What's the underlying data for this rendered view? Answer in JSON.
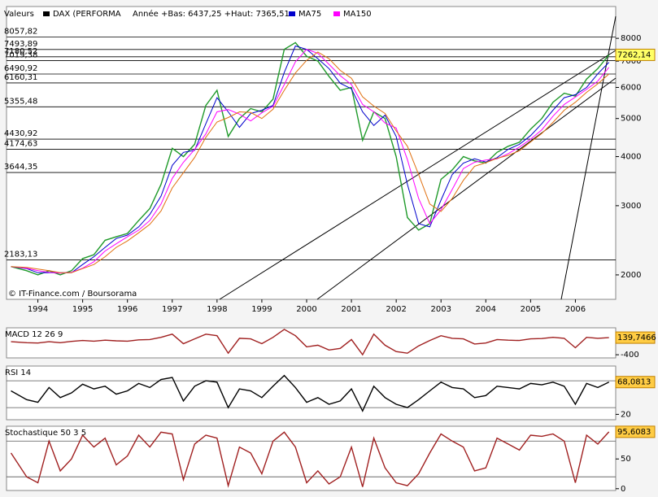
{
  "chart_data": [
    {
      "type": "line",
      "log_scale": true,
      "legend_title": "Valeurs",
      "subtitle": "Année +Bas: 6437,25 +Haut: 7365,51",
      "credit": "© IT-Finance.com / Boursorama",
      "x": [
        1993.9,
        1994.25,
        1994.5,
        1994.75,
        1995,
        1995.25,
        1995.5,
        1995.75,
        1996,
        1996.25,
        1996.5,
        1996.75,
        1997,
        1997.25,
        1997.5,
        1997.75,
        1998,
        1998.25,
        1998.5,
        1998.75,
        1999,
        1999.25,
        1999.5,
        1999.75,
        2000,
        2000.25,
        2000.5,
        2000.75,
        2001,
        2001.25,
        2001.5,
        2001.75,
        2002,
        2002.25,
        2002.5,
        2002.75,
        2003,
        2003.25,
        2003.5,
        2003.75,
        2004,
        2004.25,
        2004.5,
        2004.75,
        2005,
        2005.25,
        2005.5,
        2005.75,
        2006,
        2006.25,
        2006.5,
        2006.75,
        2007,
        2007.25
      ],
      "series": [
        {
          "name": "DAX (PERFORMA",
          "color": "#1f9a2a",
          "values": [
            2100,
            2050,
            2000,
            2050,
            2000,
            2050,
            2200,
            2250,
            2450,
            2500,
            2550,
            2750,
            2950,
            3400,
            4200,
            4000,
            4300,
            5400,
            5900,
            4500,
            5000,
            5300,
            5200,
            5600,
            7500,
            7800,
            7200,
            7000,
            6400,
            5900,
            6000,
            4400,
            5200,
            5000,
            4000,
            2800,
            2600,
            2700,
            3500,
            3700,
            4000,
            3900,
            3850,
            4100,
            4250,
            4350,
            4700,
            5000,
            5500,
            5800,
            5700,
            6300,
            6700,
            7262.14
          ]
        },
        {
          "name": "MA75",
          "color": "#0000cc",
          "values": [
            2100,
            2075,
            2025,
            2025,
            2025,
            2025,
            2125,
            2225,
            2350,
            2475,
            2525,
            2650,
            2850,
            3175,
            3800,
            4100,
            4150,
            4850,
            5650,
            5200,
            4750,
            5150,
            5250,
            5400,
            6550,
            7650,
            7500,
            7100,
            6700,
            6150,
            5950,
            5200,
            4800,
            5100,
            4500,
            3400,
            2700,
            2650,
            3100,
            3600,
            3850,
            3950,
            3875,
            3975,
            4175,
            4300,
            4525,
            4850,
            5250,
            5650,
            5750,
            6000,
            6500,
            6950
          ]
        },
        {
          "name": "MA150",
          "color": "#ff00ff",
          "values": [
            2100,
            2080,
            2050,
            2030,
            2020,
            2030,
            2080,
            2160,
            2300,
            2400,
            2500,
            2600,
            2750,
            3030,
            3520,
            3870,
            4170,
            4570,
            5200,
            5270,
            5130,
            4930,
            5170,
            5370,
            6100,
            6970,
            7500,
            7330,
            6870,
            6430,
            6100,
            5430,
            5200,
            4870,
            4730,
            3930,
            3130,
            2700,
            2930,
            3300,
            3730,
            3870,
            3920,
            3950,
            4070,
            4230,
            4430,
            4680,
            5070,
            5430,
            5670,
            5930,
            6230,
            6750
          ]
        },
        {
          "color": "#e07010",
          "values": [
            2100,
            2090,
            2070,
            2050,
            2025,
            2025,
            2075,
            2125,
            2225,
            2350,
            2440,
            2560,
            2690,
            2910,
            3330,
            3640,
            3980,
            4480,
            4900,
            5030,
            5200,
            5180,
            5000,
            5280,
            5900,
            6530,
            7030,
            7380,
            7100,
            6630,
            6330,
            5680,
            5380,
            5150,
            4650,
            4250,
            3600,
            3030,
            2900,
            3130,
            3480,
            3780,
            3860,
            3960,
            4030,
            4140,
            4360,
            4580,
            4890,
            5250,
            5500,
            5830,
            6130,
            6490
          ]
        }
      ],
      "xlim": [
        1993.8,
        2007.4
      ],
      "xticks": [
        {
          "value": 1994.5,
          "label": "1994"
        },
        {
          "value": 1995.5,
          "label": "1995"
        },
        {
          "value": 1996.5,
          "label": "1996"
        },
        {
          "value": 1997.5,
          "label": "1997"
        },
        {
          "value": 1998.5,
          "label": "1998"
        },
        {
          "value": 1999.5,
          "label": "1999"
        },
        {
          "value": 2000.5,
          "label": "2000"
        },
        {
          "value": 2001.5,
          "label": "2001"
        },
        {
          "value": 2002.5,
          "label": "2002"
        },
        {
          "value": 2003.5,
          "label": "2003"
        },
        {
          "value": 2004.5,
          "label": "2004"
        },
        {
          "value": 2005.5,
          "label": "2005"
        },
        {
          "value": 2006.5,
          "label": "2006"
        }
      ],
      "ylim": [
        1733,
        9640
      ],
      "yticks": [
        2000,
        3000,
        4000,
        5000,
        6000,
        7000,
        8000
      ],
      "levels": [
        {
          "value": 8057.82,
          "label": "8057,82"
        },
        {
          "value": 7493.89,
          "label": "7493,89"
        },
        {
          "value": 7180.52,
          "label": "7180,52"
        },
        {
          "value": 7019.38,
          "label": "7019,38"
        },
        {
          "value": 6490.92,
          "label": "6490,92"
        },
        {
          "value": 6160.31,
          "label": "6160,31"
        },
        {
          "value": 5355.48,
          "label": "5355,48"
        },
        {
          "value": 4430.92,
          "label": "4430,92"
        },
        {
          "value": 4174.63,
          "label": "4174,63"
        },
        {
          "value": 3644.35,
          "label": "3644,35"
        },
        {
          "value": 2183.13,
          "label": "2183,13"
        }
      ],
      "last": {
        "value": 7262.14,
        "label": "7262,14"
      }
    },
    {
      "type": "line",
      "title": "MACD 12 26 9",
      "x": [
        1993.9,
        1994.25,
        1994.5,
        1994.75,
        1995,
        1995.25,
        1995.5,
        1995.75,
        1996,
        1996.25,
        1996.5,
        1996.75,
        1997,
        1997.25,
        1997.5,
        1997.75,
        1998,
        1998.25,
        1998.5,
        1998.75,
        1999,
        1999.25,
        1999.5,
        1999.75,
        2000,
        2000.25,
        2000.5,
        2000.75,
        2001,
        2001.25,
        2001.5,
        2001.75,
        2002,
        2002.25,
        2002.5,
        2002.75,
        2003,
        2003.25,
        2003.5,
        2003.75,
        2004,
        2004.25,
        2004.5,
        2004.75,
        2005,
        2005.25,
        2005.5,
        2005.75,
        2006,
        2006.25,
        2006.5,
        2006.75,
        2007,
        2007.25
      ],
      "series": [
        {
          "color": "#a02020",
          "values": [
            10,
            -20,
            -30,
            10,
            -20,
            20,
            50,
            30,
            60,
            40,
            30,
            70,
            80,
            150,
            250,
            -50,
            100,
            250,
            200,
            -350,
            120,
            100,
            -50,
            150,
            400,
            200,
            -150,
            -100,
            -250,
            -200,
            80,
            -400,
            250,
            -100,
            -300,
            -350,
            -120,
            50,
            200,
            120,
            100,
            -60,
            -30,
            80,
            60,
            50,
            100,
            110,
            150,
            120,
            -180,
            150,
            120,
            139.7466
          ]
        }
      ],
      "xlim": [
        1993.8,
        2007.4
      ],
      "ylim": [
        -500,
        450
      ],
      "yticks": [
        -400
      ],
      "last": {
        "value": 139.7466,
        "label": "139,7466"
      }
    },
    {
      "type": "line",
      "title": "RSI 14",
      "x": [
        1993.9,
        1994.25,
        1994.5,
        1994.75,
        1995,
        1995.25,
        1995.5,
        1995.75,
        1996,
        1996.25,
        1996.5,
        1996.75,
        1997,
        1997.25,
        1997.5,
        1997.75,
        1998,
        1998.25,
        1998.5,
        1998.75,
        1999,
        1999.25,
        1999.5,
        1999.75,
        2000,
        2000.25,
        2000.5,
        2000.75,
        2001,
        2001.25,
        2001.5,
        2001.75,
        2002,
        2002.25,
        2002.5,
        2002.75,
        2003,
        2003.25,
        2003.5,
        2003.75,
        2004,
        2004.25,
        2004.5,
        2004.75,
        2005,
        2005.25,
        2005.5,
        2005.75,
        2006,
        2006.25,
        2006.5,
        2006.75,
        2007,
        2007.25
      ],
      "series": [
        {
          "color": "#000000",
          "values": [
            55,
            42,
            38,
            60,
            45,
            52,
            65,
            58,
            62,
            50,
            55,
            66,
            60,
            72,
            75,
            40,
            62,
            70,
            68,
            30,
            58,
            55,
            45,
            62,
            78,
            60,
            38,
            45,
            35,
            40,
            58,
            25,
            62,
            45,
            35,
            30,
            42,
            55,
            68,
            60,
            58,
            45,
            48,
            62,
            60,
            58,
            66,
            64,
            68,
            62,
            35,
            66,
            60,
            68.0813
          ]
        }
      ],
      "xlim": [
        1993.8,
        2007.4
      ],
      "ylim": [
        12,
        92
      ],
      "yticks": [
        20
      ],
      "levels": [
        30,
        70
      ],
      "last": {
        "value": 68.0813,
        "label": "68,0813"
      }
    },
    {
      "type": "line",
      "title": "Stochastique 50 3 5",
      "x": [
        1993.9,
        1994.25,
        1994.5,
        1994.75,
        1995,
        1995.25,
        1995.5,
        1995.75,
        1996,
        1996.25,
        1996.5,
        1996.75,
        1997,
        1997.25,
        1997.5,
        1997.75,
        1998,
        1998.25,
        1998.5,
        1998.75,
        1999,
        1999.25,
        1999.5,
        1999.75,
        2000,
        2000.25,
        2000.5,
        2000.75,
        2001,
        2001.25,
        2001.5,
        2001.75,
        2002,
        2002.25,
        2002.5,
        2002.75,
        2003,
        2003.25,
        2003.5,
        2003.75,
        2004,
        2004.25,
        2004.5,
        2004.75,
        2005,
        2005.25,
        2005.5,
        2005.75,
        2006,
        2006.25,
        2006.5,
        2006.75,
        2007,
        2007.25
      ],
      "series": [
        {
          "color": "#a02020",
          "values": [
            60,
            20,
            10,
            80,
            30,
            50,
            90,
            70,
            85,
            40,
            55,
            90,
            70,
            95,
            92,
            15,
            75,
            90,
            85,
            5,
            70,
            60,
            25,
            80,
            95,
            70,
            10,
            30,
            8,
            20,
            70,
            3,
            85,
            35,
            10,
            5,
            25,
            60,
            92,
            80,
            70,
            30,
            35,
            85,
            75,
            65,
            90,
            88,
            92,
            80,
            10,
            90,
            75,
            95.6083
          ]
        }
      ],
      "xlim": [
        1993.8,
        2007.4
      ],
      "ylim": [
        -3,
        105
      ],
      "yticks": [
        0,
        50
      ],
      "levels": [
        20,
        80
      ],
      "last": {
        "value": 95.6083,
        "label": "95,6083"
      }
    }
  ]
}
